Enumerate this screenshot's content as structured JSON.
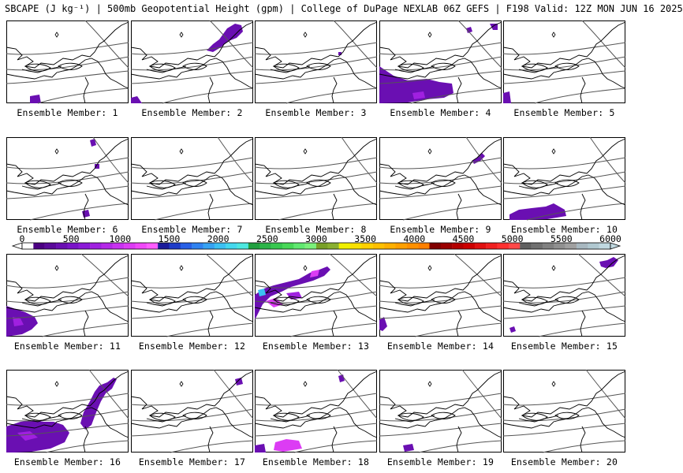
{
  "header": {
    "title": "SBCAPE (J kg⁻¹) | 500mb Geopotential Height (gpm) | College of DuPage NEXLAB 06Z GEFS | F198 Valid: 12Z MON JUN 16 2025"
  },
  "colorbar": {
    "ticks": [
      "0",
      "500",
      "1000",
      "1500",
      "2000",
      "2500",
      "3000",
      "3500",
      "4000",
      "4500",
      "5000",
      "5500",
      "6000"
    ],
    "colors": [
      "#ffffff",
      "#4b0082",
      "#5a0a9a",
      "#6a0fb2",
      "#7a14c8",
      "#8c1ad8",
      "#a020e0",
      "#b428e8",
      "#c832f0",
      "#dc3cf4",
      "#f048f8",
      "#ff5cff",
      "#1a1a9a",
      "#1f3cc8",
      "#2860e6",
      "#2f82f0",
      "#36a2f2",
      "#3cc0f2",
      "#44d8ee",
      "#4ce8e0",
      "#20a040",
      "#2cb448",
      "#38c850",
      "#48d858",
      "#60e870",
      "#7af07a",
      "#78a028",
      "#8ab030",
      "#f0f000",
      "#f8e000",
      "#ffd000",
      "#ffc000",
      "#ffb000",
      "#ffa000",
      "#ff9000",
      "#ff8000",
      "#800000",
      "#9a0000",
      "#b40000",
      "#cc0000",
      "#e01010",
      "#f02020",
      "#ff3030",
      "#ff4848",
      "#606060",
      "#707070",
      "#808080",
      "#909090",
      "#a0a0a0",
      "#a8b8c0",
      "#b0c8d0",
      "#c0d8e0"
    ]
  },
  "members": [
    {
      "label": "Ensemble Member: 1"
    },
    {
      "label": "Ensemble Member: 2"
    },
    {
      "label": "Ensemble Member: 3"
    },
    {
      "label": "Ensemble Member: 4"
    },
    {
      "label": "Ensemble Member: 5"
    },
    {
      "label": "Ensemble Member: 6"
    },
    {
      "label": "Ensemble Member: 7"
    },
    {
      "label": "Ensemble Member: 8"
    },
    {
      "label": "Ensemble Member: 9"
    },
    {
      "label": "Ensemble Member: 10"
    },
    {
      "label": "Ensemble Member: 11"
    },
    {
      "label": "Ensemble Member: 12"
    },
    {
      "label": "Ensemble Member: 13"
    },
    {
      "label": "Ensemble Member: 14"
    },
    {
      "label": "Ensemble Member: 15"
    },
    {
      "label": "Ensemble Member: 16"
    },
    {
      "label": "Ensemble Member: 17"
    },
    {
      "label": "Ensemble Member: 18"
    },
    {
      "label": "Ensemble Member: 19"
    },
    {
      "label": "Ensemble Member: 20"
    }
  ],
  "colors": {
    "cape_low": "#6a0fb2",
    "cape_mid": "#a020e0",
    "cape_high": "#dc3cf4",
    "cape_cyan": "#3cc0f2",
    "height_contour": "#555555",
    "coastline": "#000000"
  }
}
